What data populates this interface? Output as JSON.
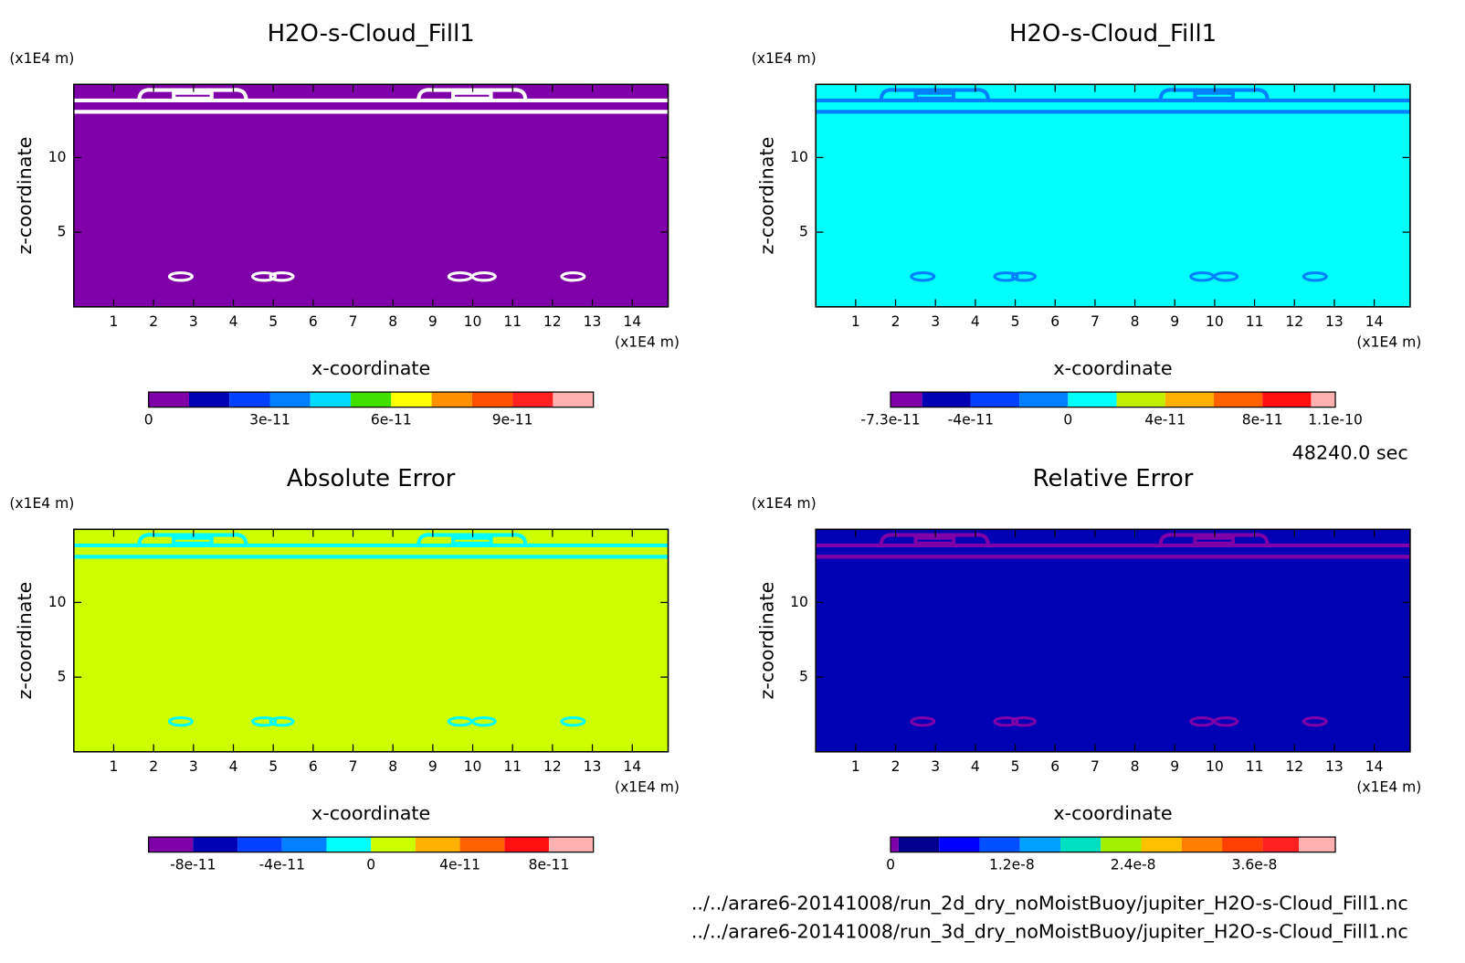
{
  "time_label": "48240.0 sec",
  "files": [
    "../../arare6-20141008/run_2d_dry_noMoistBuoy/jupiter_H2O-s-Cloud_Fill1.nc",
    "../../arare6-20141008/run_3d_dry_noMoistBuoy/jupiter_H2O-s-Cloud_Fill1.nc"
  ],
  "chart_data": [
    {
      "type": "contour",
      "title": "H2O-s-Cloud_Fill1",
      "y_unit": "(x1E4 m)",
      "x_unit": "(x1E4 m)",
      "xlabel": "x-coordinate",
      "ylabel": "z-coordinate",
      "xlim": [
        0,
        14.9
      ],
      "ylim": [
        0,
        14.9
      ],
      "xticks": [
        1,
        2,
        3,
        4,
        5,
        6,
        7,
        8,
        9,
        10,
        11,
        12,
        13,
        14
      ],
      "yticks": [
        5,
        10
      ],
      "colors": {
        "field": "#7f00a8",
        "feature": "#ffffff"
      },
      "colorbar": {
        "levels": [
          0,
          1e-11,
          2e-11,
          3e-11,
          4e-11,
          5e-11,
          6e-11,
          7e-11,
          8e-11,
          9e-11,
          1e-10,
          1.1e-10
        ],
        "colors": [
          "#7f00a8",
          "#0000b4",
          "#0040ff",
          "#0080ff",
          "#00dcff",
          "#40e000",
          "#ffff00",
          "#ff9000",
          "#ff5000",
          "#ff2020",
          "#ffb0b0"
        ],
        "ticks": [
          0,
          {
            "value": 3e-11,
            "label": "3e-11"
          },
          {
            "value": 6e-11,
            "label": "6e-11"
          },
          {
            "value": 9e-11,
            "label": "9e-11"
          }
        ]
      }
    },
    {
      "type": "contour",
      "title": "H2O-s-Cloud_Fill1",
      "y_unit": "(x1E4 m)",
      "x_unit": "(x1E4 m)",
      "xlabel": "x-coordinate",
      "ylabel": "z-coordinate",
      "xlim": [
        0,
        14.9
      ],
      "ylim": [
        0,
        14.9
      ],
      "xticks": [
        1,
        2,
        3,
        4,
        5,
        6,
        7,
        8,
        9,
        10,
        11,
        12,
        13,
        14
      ],
      "yticks": [
        5,
        10
      ],
      "colors": {
        "field": "#00ffff",
        "feature": "#0080ff"
      },
      "colorbar": {
        "levels": [
          -7.3e-11,
          -6e-11,
          -4e-11,
          -2e-11,
          0,
          2e-11,
          4e-11,
          6e-11,
          8e-11,
          1e-10,
          1.1e-10
        ],
        "colors": [
          "#7f00a8",
          "#0000b4",
          "#0040ff",
          "#0080ff",
          "#00ffff",
          "#c0f000",
          "#ffb000",
          "#ff6000",
          "#ff1010",
          "#ffb0b0"
        ],
        "ticks": [
          {
            "value": -7.3e-11,
            "label": "-7.3e-11"
          },
          {
            "value": -4e-11,
            "label": "-4e-11"
          },
          0,
          {
            "value": 4e-11,
            "label": "4e-11"
          },
          {
            "value": 8e-11,
            "label": "8e-11"
          },
          {
            "value": 1.1e-10,
            "label": "1.1e-10"
          }
        ]
      }
    },
    {
      "type": "contour",
      "title": "Absolute Error",
      "y_unit": "(x1E4 m)",
      "x_unit": "(x1E4 m)",
      "xlabel": "x-coordinate",
      "ylabel": "z-coordinate",
      "xlim": [
        0,
        14.9
      ],
      "ylim": [
        0,
        14.9
      ],
      "xticks": [
        1,
        2,
        3,
        4,
        5,
        6,
        7,
        8,
        9,
        10,
        11,
        12,
        13,
        14
      ],
      "yticks": [
        5,
        10
      ],
      "colors": {
        "field": "#ccff00",
        "feature": "#00ffff"
      },
      "colorbar": {
        "levels": [
          -1e-10,
          -8e-11,
          -6e-11,
          -4e-11,
          -2e-11,
          0,
          2e-11,
          4e-11,
          6e-11,
          8e-11,
          1e-10
        ],
        "colors": [
          "#7f00a8",
          "#0000b4",
          "#0040ff",
          "#0080ff",
          "#00ffff",
          "#ccff00",
          "#ffb000",
          "#ff6000",
          "#ff1010",
          "#ffb0b0"
        ],
        "ticks": [
          {
            "value": -8e-11,
            "label": "-8e-11"
          },
          {
            "value": -4e-11,
            "label": "-4e-11"
          },
          0,
          {
            "value": 4e-11,
            "label": "4e-11"
          },
          {
            "value": 8e-11,
            "label": "8e-11"
          }
        ]
      }
    },
    {
      "type": "contour",
      "title": "Relative Error",
      "y_unit": "(x1E4 m)",
      "x_unit": "(x1E4 m)",
      "xlabel": "x-coordinate",
      "ylabel": "z-coordinate",
      "xlim": [
        0,
        14.9
      ],
      "ylim": [
        0,
        14.9
      ],
      "xticks": [
        1,
        2,
        3,
        4,
        5,
        6,
        7,
        8,
        9,
        10,
        11,
        12,
        13,
        14
      ],
      "yticks": [
        5,
        10
      ],
      "colors": {
        "field": "#0000b4",
        "feature": "#7f00a8"
      },
      "colorbar": {
        "levels": [
          0,
          8e-10,
          4.8e-09,
          8.8e-09,
          1.28e-08,
          1.68e-08,
          2.08e-08,
          2.48e-08,
          2.88e-08,
          3.28e-08,
          3.68e-08,
          4.04e-08,
          4.4e-08
        ],
        "colors": [
          "#7f00a8",
          "#00008c",
          "#0000ff",
          "#0050ff",
          "#00a0ff",
          "#00e0c0",
          "#a0f000",
          "#ffc000",
          "#ff8000",
          "#ff4000",
          "#ff2020",
          "#ffb0b0"
        ],
        "ticks": [
          0,
          {
            "value": 1.2e-08,
            "label": "1.2e-8"
          },
          {
            "value": 2.4e-08,
            "label": "2.4e-8"
          },
          {
            "value": 3.6e-08,
            "label": "3.6e-8"
          }
        ]
      }
    }
  ]
}
